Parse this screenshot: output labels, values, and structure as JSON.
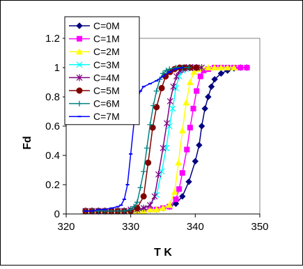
{
  "chart_data": {
    "type": "line",
    "title": "",
    "xlabel": "T K",
    "ylabel": "Fd",
    "xlim": [
      320,
      350
    ],
    "ylim": [
      0,
      1.2
    ],
    "xticks": [
      320,
      330,
      340,
      350
    ],
    "yticks": [
      0,
      0.2,
      0.4,
      0.6,
      0.8,
      1,
      1.2
    ],
    "xtick_labels": [
      "320",
      "330",
      "340",
      "350"
    ],
    "ytick_labels": [
      "0",
      "0.2",
      "0.4",
      "0.6",
      "0.8",
      "1",
      "1.2"
    ],
    "grid": false,
    "legend_position": "top-left",
    "series": [
      {
        "name": "C=0M",
        "color": "#000080",
        "marker": "diamond",
        "points": [
          [
            323,
            0.02
          ],
          [
            324,
            0.02
          ],
          [
            325,
            0.02
          ],
          [
            326,
            0.02
          ],
          [
            327,
            0.02
          ],
          [
            328,
            0.02
          ],
          [
            329,
            0.02
          ],
          [
            330,
            0.02
          ],
          [
            331,
            0.02
          ],
          [
            332,
            0.03
          ],
          [
            333,
            0.03
          ],
          [
            334,
            0.03
          ],
          [
            335,
            0.04
          ],
          [
            336,
            0.05
          ],
          [
            337,
            0.07
          ],
          [
            338,
            0.12
          ],
          [
            339,
            0.22
          ],
          [
            340,
            0.36
          ],
          [
            340.6,
            0.47
          ],
          [
            341,
            0.6
          ],
          [
            341.5,
            0.72
          ],
          [
            342,
            0.8
          ],
          [
            342.5,
            0.87
          ],
          [
            343,
            0.92
          ],
          [
            344,
            0.96
          ],
          [
            345,
            0.98
          ],
          [
            346,
            0.995
          ],
          [
            347,
            1.0
          ],
          [
            348,
            1.0
          ]
        ]
      },
      {
        "name": "C=1M",
        "color": "#FF00FF",
        "marker": "square",
        "points": [
          [
            323,
            0.02
          ],
          [
            324,
            0.02
          ],
          [
            325,
            0.02
          ],
          [
            326,
            0.02
          ],
          [
            327,
            0.02
          ],
          [
            328,
            0.02
          ],
          [
            329,
            0.02
          ],
          [
            330,
            0.02
          ],
          [
            331,
            0.02
          ],
          [
            332,
            0.02
          ],
          [
            333,
            0.03
          ],
          [
            334,
            0.03
          ],
          [
            335,
            0.04
          ],
          [
            336,
            0.05
          ],
          [
            337,
            0.1
          ],
          [
            337.5,
            0.17
          ],
          [
            338,
            0.28
          ],
          [
            338.7,
            0.44
          ],
          [
            339.2,
            0.59
          ],
          [
            339.7,
            0.72
          ],
          [
            340.2,
            0.84
          ],
          [
            340.8,
            0.94
          ],
          [
            341.3,
            0.98
          ],
          [
            342,
            0.99
          ],
          [
            343,
            1.0
          ],
          [
            344,
            1.0
          ],
          [
            345,
            1.0
          ],
          [
            346,
            1.0
          ],
          [
            347,
            1.0
          ],
          [
            348,
            1.0
          ]
        ]
      },
      {
        "name": "C=2M",
        "color": "#FFFF00",
        "marker": "triangle",
        "points": [
          [
            323,
            0.02
          ],
          [
            324,
            0.02
          ],
          [
            325,
            0.02
          ],
          [
            326,
            0.02
          ],
          [
            327,
            0.02
          ],
          [
            328,
            0.02
          ],
          [
            329,
            0.02
          ],
          [
            330,
            0.02
          ],
          [
            331,
            0.02
          ],
          [
            332,
            0.02
          ],
          [
            333,
            0.03
          ],
          [
            334,
            0.03
          ],
          [
            335,
            0.04
          ],
          [
            336,
            0.06
          ],
          [
            336.8,
            0.15
          ],
          [
            337.4,
            0.35
          ],
          [
            338,
            0.57
          ],
          [
            338.6,
            0.76
          ],
          [
            339.2,
            0.9
          ],
          [
            339.8,
            0.97
          ],
          [
            340.5,
            0.99
          ],
          [
            341,
            1.0
          ],
          [
            342,
            1.0
          ],
          [
            343,
            1.0
          ],
          [
            344,
            1.0
          ],
          [
            345,
            1.0
          ],
          [
            346,
            1.0
          ]
        ]
      },
      {
        "name": "C=3M",
        "color": "#00FFFF",
        "marker": "x",
        "points": [
          [
            323,
            0.02
          ],
          [
            324,
            0.02
          ],
          [
            325,
            0.02
          ],
          [
            326,
            0.02
          ],
          [
            327,
            0.02
          ],
          [
            328,
            0.02
          ],
          [
            329,
            0.02
          ],
          [
            330,
            0.03
          ],
          [
            331,
            0.03
          ],
          [
            332,
            0.04
          ],
          [
            333,
            0.06
          ],
          [
            334,
            0.13
          ],
          [
            334.8,
            0.29
          ],
          [
            335.5,
            0.45
          ],
          [
            336,
            0.6
          ],
          [
            336.5,
            0.72
          ],
          [
            337,
            0.86
          ],
          [
            337.5,
            0.94
          ],
          [
            338,
            0.98
          ],
          [
            338.5,
            0.99
          ],
          [
            339,
            1.0
          ],
          [
            340,
            1.0
          ],
          [
            341,
            1.0
          ]
        ]
      },
      {
        "name": "C=4M",
        "color": "#800080",
        "marker": "star",
        "points": [
          [
            323,
            0.02
          ],
          [
            324,
            0.02
          ],
          [
            325,
            0.02
          ],
          [
            326,
            0.02
          ],
          [
            327,
            0.02
          ],
          [
            328,
            0.02
          ],
          [
            329,
            0.02
          ],
          [
            330,
            0.03
          ],
          [
            331,
            0.03
          ],
          [
            332,
            0.04
          ],
          [
            333,
            0.06
          ],
          [
            333.7,
            0.12
          ],
          [
            334.3,
            0.27
          ],
          [
            335,
            0.45
          ],
          [
            335.6,
            0.62
          ],
          [
            336.1,
            0.77
          ],
          [
            336.6,
            0.87
          ],
          [
            337.1,
            0.94
          ],
          [
            337.6,
            0.98
          ],
          [
            338.1,
            0.99
          ],
          [
            338.6,
            1.0
          ],
          [
            339.1,
            1.0
          ],
          [
            339.6,
            1.0
          ],
          [
            340.2,
            1.0
          ],
          [
            341,
            1.0
          ]
        ]
      },
      {
        "name": "C=5M",
        "color": "#800000",
        "marker": "circle",
        "points": [
          [
            323,
            0.02
          ],
          [
            324,
            0.02
          ],
          [
            325,
            0.02
          ],
          [
            326,
            0.02
          ],
          [
            327,
            0.02
          ],
          [
            328,
            0.02
          ],
          [
            329,
            0.02
          ],
          [
            330,
            0.02
          ],
          [
            331,
            0.04
          ],
          [
            332,
            0.12
          ],
          [
            332.7,
            0.35
          ],
          [
            333.4,
            0.59
          ],
          [
            334,
            0.73
          ],
          [
            334.8,
            0.86
          ],
          [
            335.4,
            0.94
          ],
          [
            336.1,
            0.97
          ],
          [
            336.8,
            0.99
          ],
          [
            337.6,
            1.0
          ],
          [
            338.3,
            1.0
          ],
          [
            339.2,
            1.0
          ],
          [
            340.2,
            1.0
          ]
        ]
      },
      {
        "name": "C=6M",
        "color": "#008080",
        "marker": "plus",
        "points": [
          [
            323,
            0.02
          ],
          [
            324,
            0.02
          ],
          [
            325,
            0.02
          ],
          [
            326,
            0.02
          ],
          [
            327,
            0.02
          ],
          [
            328,
            0.02
          ],
          [
            329,
            0.02
          ],
          [
            330,
            0.03
          ],
          [
            330.5,
            0.05
          ],
          [
            331,
            0.08
          ],
          [
            331.5,
            0.18
          ],
          [
            332,
            0.29
          ],
          [
            332.5,
            0.45
          ],
          [
            333,
            0.61
          ],
          [
            333.5,
            0.74
          ],
          [
            334,
            0.84
          ],
          [
            334.5,
            0.92
          ],
          [
            335,
            0.96
          ],
          [
            335.5,
            0.98
          ],
          [
            336,
            0.99
          ],
          [
            337,
            1.0
          ],
          [
            338,
            1.0
          ],
          [
            339,
            1.0
          ]
        ]
      },
      {
        "name": "C=7M",
        "color": "#0000FF",
        "marker": "dash",
        "points": [
          [
            323,
            0.02
          ],
          [
            324,
            0.02
          ],
          [
            325,
            0.03
          ],
          [
            326,
            0.03
          ],
          [
            327,
            0.04
          ],
          [
            328,
            0.05
          ],
          [
            328.5,
            0.06
          ],
          [
            329,
            0.1
          ],
          [
            329.5,
            0.2
          ],
          [
            330,
            0.41
          ],
          [
            330.5,
            0.62
          ],
          [
            331,
            0.78
          ],
          [
            331.5,
            0.84
          ],
          [
            332,
            0.87
          ],
          [
            333,
            0.89
          ],
          [
            334,
            0.91
          ],
          [
            335,
            0.94
          ],
          [
            336,
            0.97
          ],
          [
            337,
            0.99
          ],
          [
            338,
            1.0
          ]
        ]
      }
    ]
  }
}
